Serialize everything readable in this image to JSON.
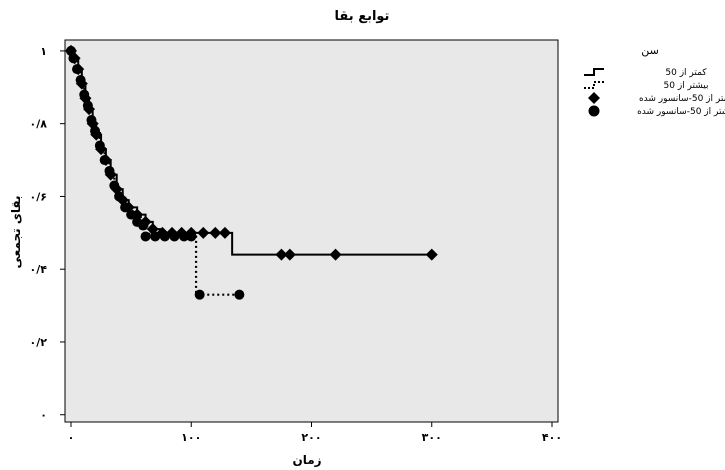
{
  "chart_data": {
    "type": "line",
    "title": "توابع بقا",
    "xlabel": "زمان",
    "ylabel": "بقای تجمعی",
    "xlim": [
      -5,
      405
    ],
    "ylim": [
      -0.02,
      1.03
    ],
    "x_ticks": [
      {
        "value": 0,
        "label": "۰"
      },
      {
        "value": 100,
        "label": "۱۰۰"
      },
      {
        "value": 200,
        "label": "۲۰۰"
      },
      {
        "value": 300,
        "label": "۳۰۰"
      },
      {
        "value": 400,
        "label": "۴۰۰"
      }
    ],
    "y_ticks": [
      {
        "value": 0,
        "label": "۰"
      },
      {
        "value": 0.2,
        "label": "۰/۲"
      },
      {
        "value": 0.4,
        "label": "۰/۴"
      },
      {
        "value": 0.6,
        "label": "۰/۶"
      },
      {
        "value": 0.8,
        "label": "۰/۸"
      },
      {
        "value": 1,
        "label": "۱"
      }
    ],
    "grid": false,
    "plot_background": "#e8e8e8",
    "legend": {
      "title": "سن",
      "placement": "right",
      "entries": [
        {
          "label": "کمتر از 50",
          "kind": "line-solid"
        },
        {
          "label": "بیشتر از 50",
          "kind": "line-dotted"
        },
        {
          "label": "کمتر از 50-سانسور شده",
          "kind": "diamond"
        },
        {
          "label": "بیشتر از 50-سانسور شده",
          "kind": "circle"
        }
      ]
    },
    "series": [
      {
        "name": "کمتر از 50",
        "style": "solid",
        "steps": [
          [
            0,
            1.0
          ],
          [
            3,
            0.98
          ],
          [
            6,
            0.95
          ],
          [
            9,
            0.91
          ],
          [
            12,
            0.87
          ],
          [
            15,
            0.84
          ],
          [
            18,
            0.8
          ],
          [
            21,
            0.77
          ],
          [
            25,
            0.73
          ],
          [
            29,
            0.7
          ],
          [
            33,
            0.66
          ],
          [
            38,
            0.62
          ],
          [
            43,
            0.59
          ],
          [
            48,
            0.57
          ],
          [
            55,
            0.55
          ],
          [
            62,
            0.53
          ],
          [
            68,
            0.51
          ],
          [
            74,
            0.5
          ],
          [
            134,
            0.44
          ],
          [
            300,
            0.44
          ]
        ]
      },
      {
        "name": "بیشتر از 50",
        "style": "dotted",
        "steps": [
          [
            0,
            1.0
          ],
          [
            2,
            0.98
          ],
          [
            5,
            0.95
          ],
          [
            8,
            0.92
          ],
          [
            11,
            0.88
          ],
          [
            14,
            0.85
          ],
          [
            17,
            0.81
          ],
          [
            20,
            0.78
          ],
          [
            24,
            0.74
          ],
          [
            28,
            0.7
          ],
          [
            32,
            0.67
          ],
          [
            36,
            0.63
          ],
          [
            40,
            0.6
          ],
          [
            45,
            0.57
          ],
          [
            50,
            0.55
          ],
          [
            58,
            0.52
          ],
          [
            65,
            0.49
          ],
          [
            104,
            0.33
          ],
          [
            140,
            0.33
          ]
        ]
      }
    ],
    "censored": [
      {
        "name": "کمتر از 50-سانسور شده",
        "marker": "diamond",
        "points": [
          [
            0,
            1.0
          ],
          [
            3,
            0.98
          ],
          [
            6,
            0.95
          ],
          [
            9,
            0.91
          ],
          [
            12,
            0.87
          ],
          [
            15,
            0.84
          ],
          [
            18,
            0.8
          ],
          [
            21,
            0.77
          ],
          [
            25,
            0.73
          ],
          [
            29,
            0.7
          ],
          [
            33,
            0.66
          ],
          [
            38,
            0.62
          ],
          [
            43,
            0.59
          ],
          [
            48,
            0.57
          ],
          [
            55,
            0.55
          ],
          [
            62,
            0.53
          ],
          [
            68,
            0.51
          ],
          [
            76,
            0.5
          ],
          [
            84,
            0.5
          ],
          [
            92,
            0.5
          ],
          [
            100,
            0.5
          ],
          [
            110,
            0.5
          ],
          [
            120,
            0.5
          ],
          [
            128,
            0.5
          ],
          [
            175,
            0.44
          ],
          [
            182,
            0.44
          ],
          [
            220,
            0.44
          ],
          [
            300,
            0.44
          ]
        ]
      },
      {
        "name": "بیشتر از 50-سانسور شده",
        "marker": "circle",
        "points": [
          [
            0,
            1.0
          ],
          [
            2,
            0.98
          ],
          [
            5,
            0.95
          ],
          [
            8,
            0.92
          ],
          [
            11,
            0.88
          ],
          [
            14,
            0.85
          ],
          [
            17,
            0.81
          ],
          [
            20,
            0.78
          ],
          [
            24,
            0.74
          ],
          [
            28,
            0.7
          ],
          [
            32,
            0.67
          ],
          [
            36,
            0.63
          ],
          [
            40,
            0.6
          ],
          [
            45,
            0.57
          ],
          [
            50,
            0.55
          ],
          [
            55,
            0.53
          ],
          [
            60,
            0.52
          ],
          [
            62,
            0.49
          ],
          [
            70,
            0.49
          ],
          [
            78,
            0.49
          ],
          [
            86,
            0.49
          ],
          [
            94,
            0.49
          ],
          [
            100,
            0.49
          ],
          [
            107,
            0.33
          ],
          [
            140,
            0.33
          ]
        ]
      }
    ]
  }
}
